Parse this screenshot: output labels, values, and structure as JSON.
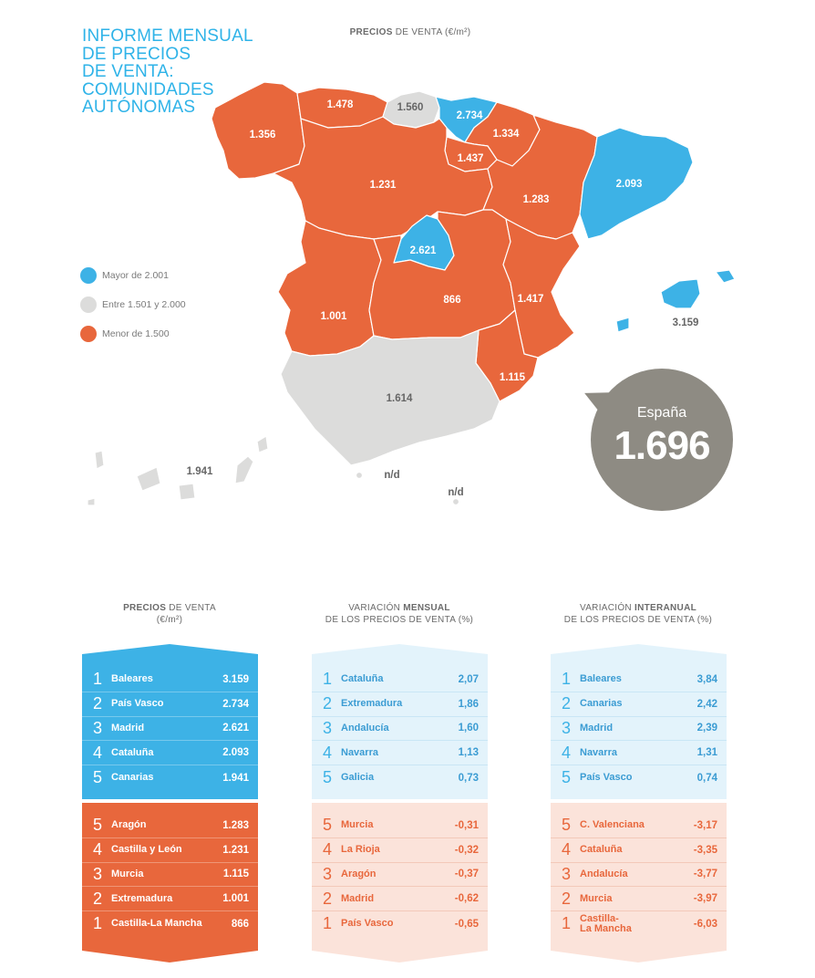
{
  "title": [
    "INFORME MENSUAL",
    "DE PRECIOS",
    "DE VENTA:",
    "COMUNIDADES",
    "AUTÓNOMAS"
  ],
  "map_heading": {
    "bold": "PRECIOS",
    "rest": " DE VENTA (€/m²)"
  },
  "colors": {
    "blue": "#3db2e6",
    "grey": "#dcdcdb",
    "orange": "#e8673c",
    "circle": "#8e8b83"
  },
  "legend": [
    {
      "label": "Mayor de 2.001",
      "color": "#3db2e6"
    },
    {
      "label": "Entre 1.501 y 2.000",
      "color": "#dcdcdb"
    },
    {
      "label": "Menor de 1.500",
      "color": "#e8673c"
    }
  ],
  "map_values": {
    "galicia": "1.356",
    "asturias": "1.478",
    "cantabria": "1.560",
    "pais_vasco": "2.734",
    "navarra": "1.334",
    "la_rioja": "1.437",
    "castilla_leon": "1.231",
    "aragon": "1.283",
    "cataluna": "2.093",
    "madrid": "2.621",
    "castilla_la_mancha": "866",
    "c_valenciana": "1.417",
    "extremadura": "1.001",
    "andalucia": "1.614",
    "murcia": "1.115",
    "baleares": "3.159",
    "canarias": "1.941",
    "ceuta": "n/d",
    "melilla": "n/d"
  },
  "spain": {
    "label": "España",
    "value": "1.696"
  },
  "tables": [
    {
      "heading_bold": "PRECIOS",
      "heading_rest": " DE VENTA",
      "heading_line2": "(€/m²)",
      "top": [
        {
          "rank": "1",
          "name": "Baleares",
          "value": "3.159"
        },
        {
          "rank": "2",
          "name": "País Vasco",
          "value": "2.734"
        },
        {
          "rank": "3",
          "name": "Madrid",
          "value": "2.621"
        },
        {
          "rank": "4",
          "name": "Cataluña",
          "value": "2.093"
        },
        {
          "rank": "5",
          "name": "Canarias",
          "value": "1.941"
        }
      ],
      "bottom": [
        {
          "rank": "5",
          "name": "Aragón",
          "value": "1.283"
        },
        {
          "rank": "4",
          "name": "Castilla y León",
          "value": "1.231"
        },
        {
          "rank": "3",
          "name": "Murcia",
          "value": "1.115"
        },
        {
          "rank": "2",
          "name": "Extremadura",
          "value": "1.001"
        },
        {
          "rank": "1",
          "name": "Castilla-La Mancha",
          "value": "866"
        }
      ]
    },
    {
      "heading_pre": "VARIACIÓN ",
      "heading_bold": "MENSUAL",
      "heading_line2": "DE LOS PRECIOS DE VENTA (%)",
      "top": [
        {
          "rank": "1",
          "name": "Cataluña",
          "value": "2,07"
        },
        {
          "rank": "2",
          "name": "Extremadura",
          "value": "1,86"
        },
        {
          "rank": "3",
          "name": "Andalucía",
          "value": "1,60"
        },
        {
          "rank": "4",
          "name": "Navarra",
          "value": "1,13"
        },
        {
          "rank": "5",
          "name": "Galicia",
          "value": "0,73"
        }
      ],
      "bottom": [
        {
          "rank": "5",
          "name": "Murcia",
          "value": "-0,31"
        },
        {
          "rank": "4",
          "name": "La Rioja",
          "value": "-0,32"
        },
        {
          "rank": "3",
          "name": "Aragón",
          "value": "-0,37"
        },
        {
          "rank": "2",
          "name": "Madrid",
          "value": "-0,62"
        },
        {
          "rank": "1",
          "name": "País Vasco",
          "value": "-0,65"
        }
      ]
    },
    {
      "heading_pre": "VARIACIÓN ",
      "heading_bold": "INTERANUAL",
      "heading_line2": "DE LOS PRECIOS DE VENTA (%)",
      "top": [
        {
          "rank": "1",
          "name": "Baleares",
          "value": "3,84"
        },
        {
          "rank": "2",
          "name": "Canarias",
          "value": "2,42"
        },
        {
          "rank": "3",
          "name": "Madrid",
          "value": "2,39"
        },
        {
          "rank": "4",
          "name": "Navarra",
          "value": "1,31"
        },
        {
          "rank": "5",
          "name": "País Vasco",
          "value": "0,74"
        }
      ],
      "bottom": [
        {
          "rank": "5",
          "name": "C. Valenciana",
          "value": "-3,17"
        },
        {
          "rank": "4",
          "name": "Cataluña",
          "value": "-3,35"
        },
        {
          "rank": "3",
          "name": "Andalucía",
          "value": "-3,77"
        },
        {
          "rank": "2",
          "name": "Murcia",
          "value": "-3,97"
        },
        {
          "rank": "1",
          "name": "Castilla-\nLa Mancha",
          "value": "-6,03"
        }
      ]
    }
  ]
}
